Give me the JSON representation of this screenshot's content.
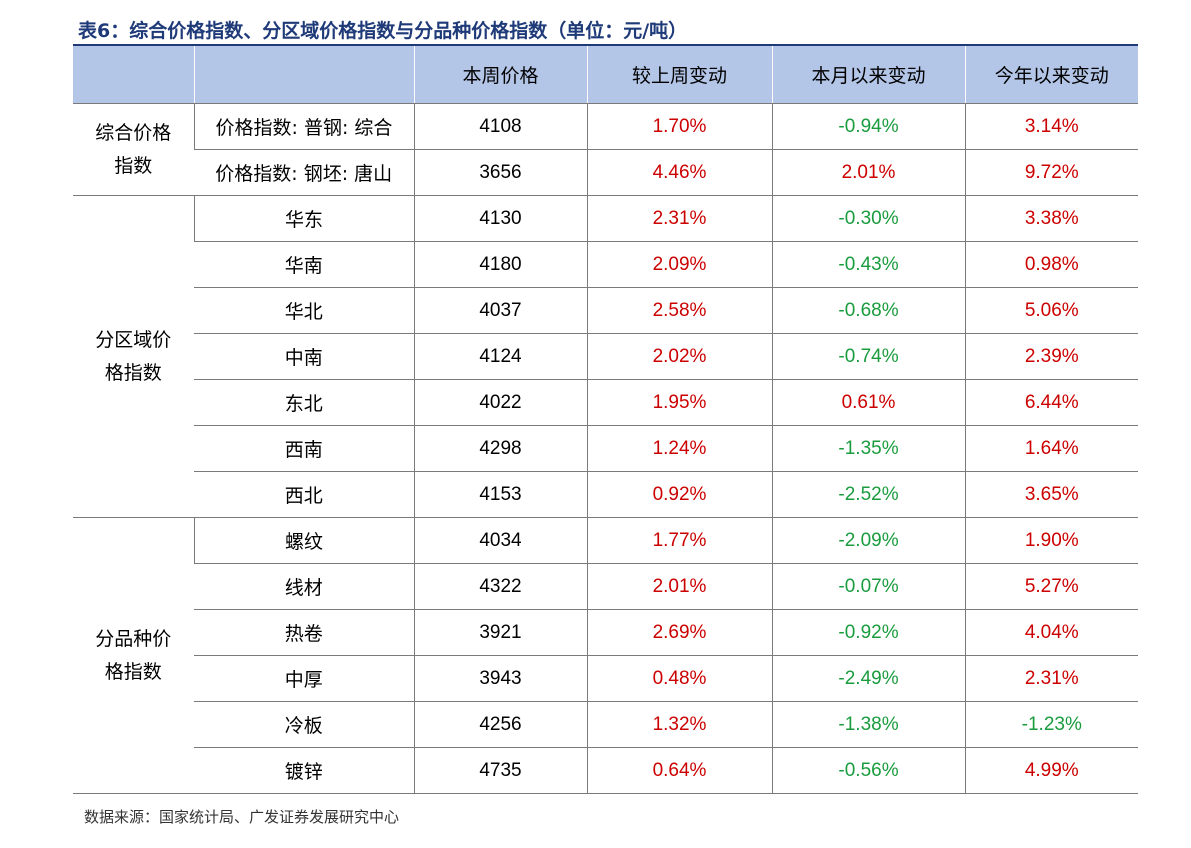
{
  "title": "表6：综合价格指数、分区域价格指数与分品种价格指数（单位：元/吨）",
  "colors": {
    "title": "#1f3a78",
    "header_bg": "#b3c6e7",
    "positive": "#cc0000",
    "negative": "#1a9c3e"
  },
  "header": {
    "col1": "",
    "col2": "",
    "price": "本周价格",
    "wow": "较上周变动",
    "mtd": "本月以来变动",
    "ytd": "今年以来变动"
  },
  "groups": [
    {
      "name_lines": [
        "综合价格",
        "指数"
      ],
      "rows": [
        {
          "item": "价格指数: 普钢: 综合",
          "price": "4108",
          "wow": "1.70%",
          "mtd": "-0.94%",
          "ytd": "3.14%"
        },
        {
          "item": "价格指数: 钢坯: 唐山",
          "price": "3656",
          "wow": "4.46%",
          "mtd": "2.01%",
          "ytd": "9.72%"
        }
      ]
    },
    {
      "name_lines": [
        "分区域价",
        "格指数"
      ],
      "rows": [
        {
          "item": "华东",
          "price": "4130",
          "wow": "2.31%",
          "mtd": "-0.30%",
          "ytd": "3.38%"
        },
        {
          "item": "华南",
          "price": "4180",
          "wow": "2.09%",
          "mtd": "-0.43%",
          "ytd": "0.98%"
        },
        {
          "item": "华北",
          "price": "4037",
          "wow": "2.58%",
          "mtd": "-0.68%",
          "ytd": "5.06%"
        },
        {
          "item": "中南",
          "price": "4124",
          "wow": "2.02%",
          "mtd": "-0.74%",
          "ytd": "2.39%"
        },
        {
          "item": "东北",
          "price": "4022",
          "wow": "1.95%",
          "mtd": "0.61%",
          "ytd": "6.44%"
        },
        {
          "item": "西南",
          "price": "4298",
          "wow": "1.24%",
          "mtd": "-1.35%",
          "ytd": "1.64%"
        },
        {
          "item": "西北",
          "price": "4153",
          "wow": "0.92%",
          "mtd": "-2.52%",
          "ytd": "3.65%"
        }
      ]
    },
    {
      "name_lines": [
        "分品种价",
        "格指数"
      ],
      "rows": [
        {
          "item": "螺纹",
          "price": "4034",
          "wow": "1.77%",
          "mtd": "-2.09%",
          "ytd": "1.90%"
        },
        {
          "item": "线材",
          "price": "4322",
          "wow": "2.01%",
          "mtd": "-0.07%",
          "ytd": "5.27%"
        },
        {
          "item": "热卷",
          "price": "3921",
          "wow": "2.69%",
          "mtd": "-0.92%",
          "ytd": "4.04%"
        },
        {
          "item": "中厚",
          "price": "3943",
          "wow": "0.48%",
          "mtd": "-2.49%",
          "ytd": "2.31%"
        },
        {
          "item": "冷板",
          "price": "4256",
          "wow": "1.32%",
          "mtd": "-1.38%",
          "ytd": "-1.23%"
        },
        {
          "item": "镀锌",
          "price": "4735",
          "wow": "0.64%",
          "mtd": "-0.56%",
          "ytd": "4.99%"
        }
      ]
    }
  ],
  "source": "数据来源：国家统计局、广发证券发展研究中心"
}
